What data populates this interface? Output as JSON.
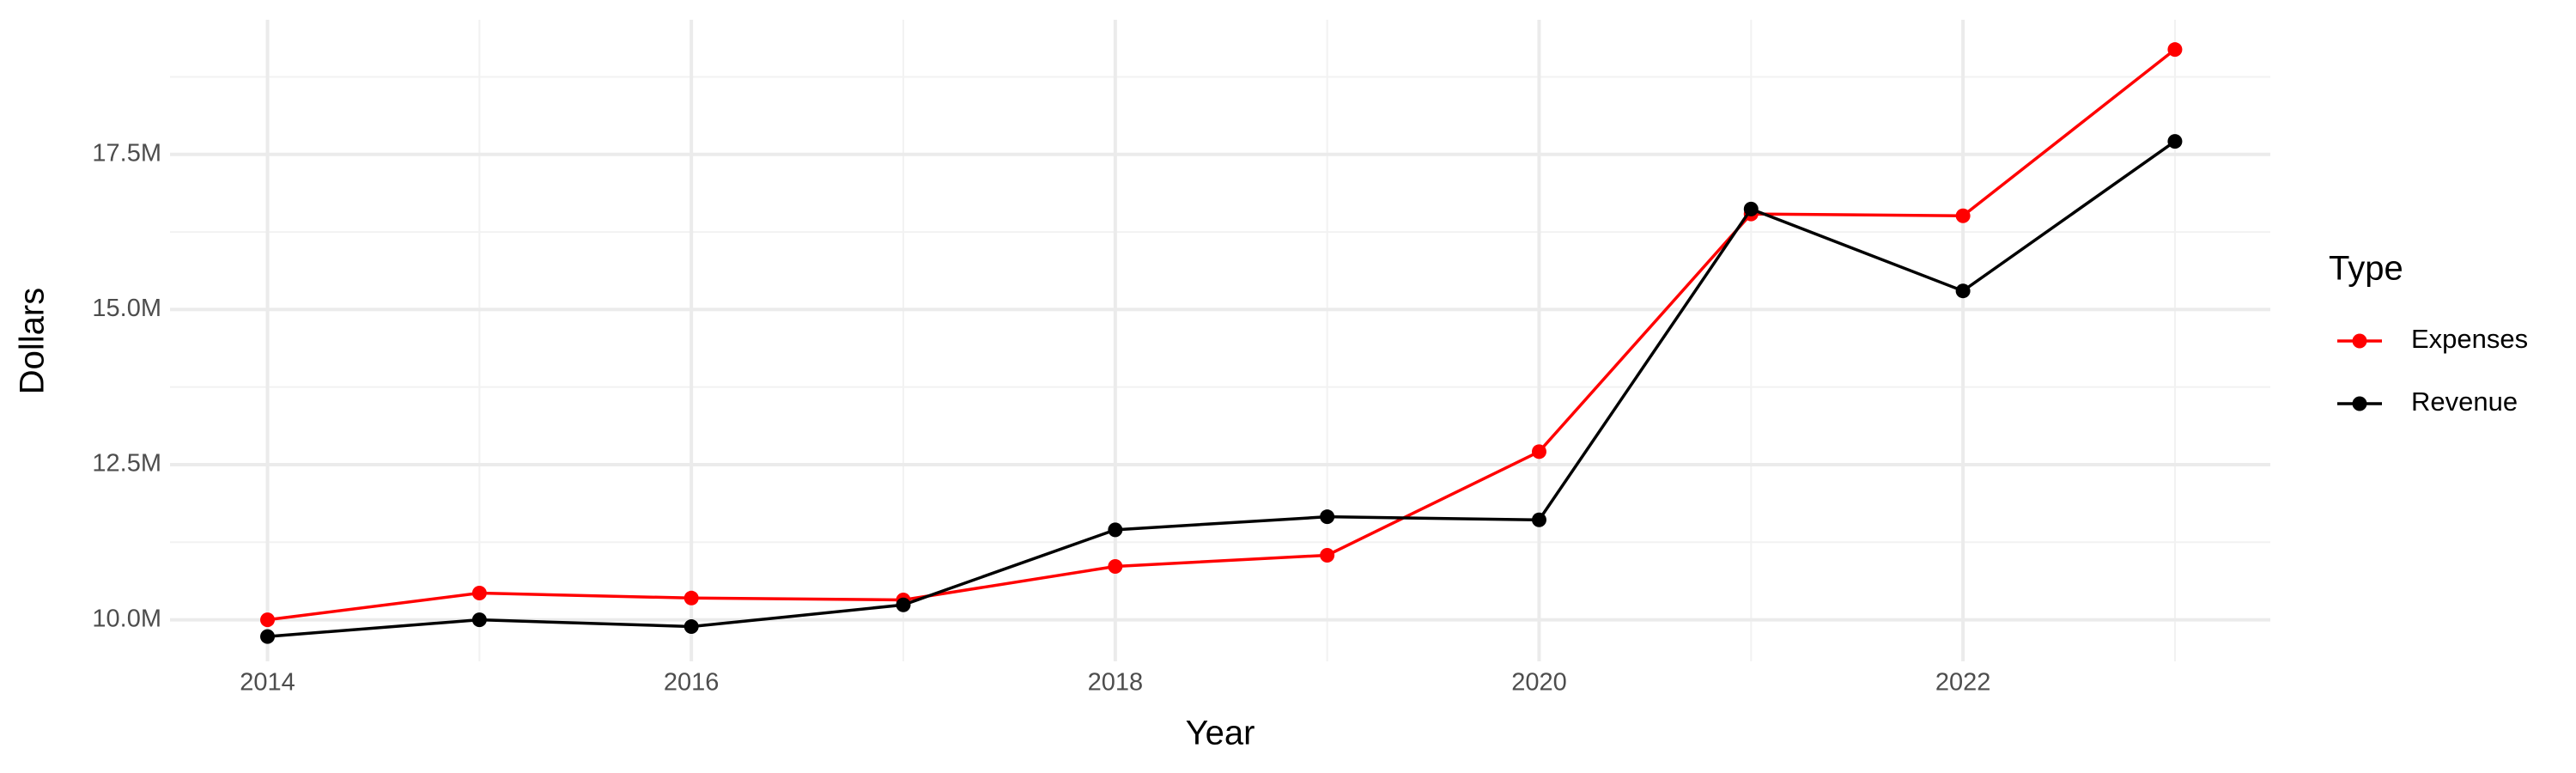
{
  "chart_data": {
    "type": "line",
    "x_label": "Year",
    "y_label": "Dollars",
    "legend_title": "Type",
    "x": [
      2014,
      2015,
      2016,
      2017,
      2018,
      2019,
      2020,
      2021,
      2022,
      2023
    ],
    "series": [
      {
        "name": "Expenses",
        "color": "#ff0000",
        "values": [
          10000000,
          10430000,
          10350000,
          10320000,
          10860000,
          11040000,
          12710000,
          16540000,
          16510000,
          19190000
        ]
      },
      {
        "name": "Revenue",
        "color": "#000000",
        "values": [
          9730000,
          10000000,
          9890000,
          10240000,
          11450000,
          11660000,
          11610000,
          16620000,
          15300000,
          17710000
        ]
      }
    ],
    "xlim": [
      2013.54,
      2023.45
    ],
    "xticks": [
      2014,
      2016,
      2018,
      2020,
      2022
    ],
    "xminorticks": [
      2015,
      2017,
      2019,
      2021,
      2023
    ],
    "ylim": [
      9330000,
      19670000
    ],
    "yticks": [
      {
        "value": 10000000,
        "label": "10.0M"
      },
      {
        "value": 12500000,
        "label": "12.5M"
      },
      {
        "value": 15000000,
        "label": "15.0M"
      },
      {
        "value": 17500000,
        "label": "17.5M"
      }
    ],
    "yminorticks": [
      11250000,
      13750000,
      16250000,
      18750000
    ],
    "grid": true,
    "legend": "right"
  }
}
